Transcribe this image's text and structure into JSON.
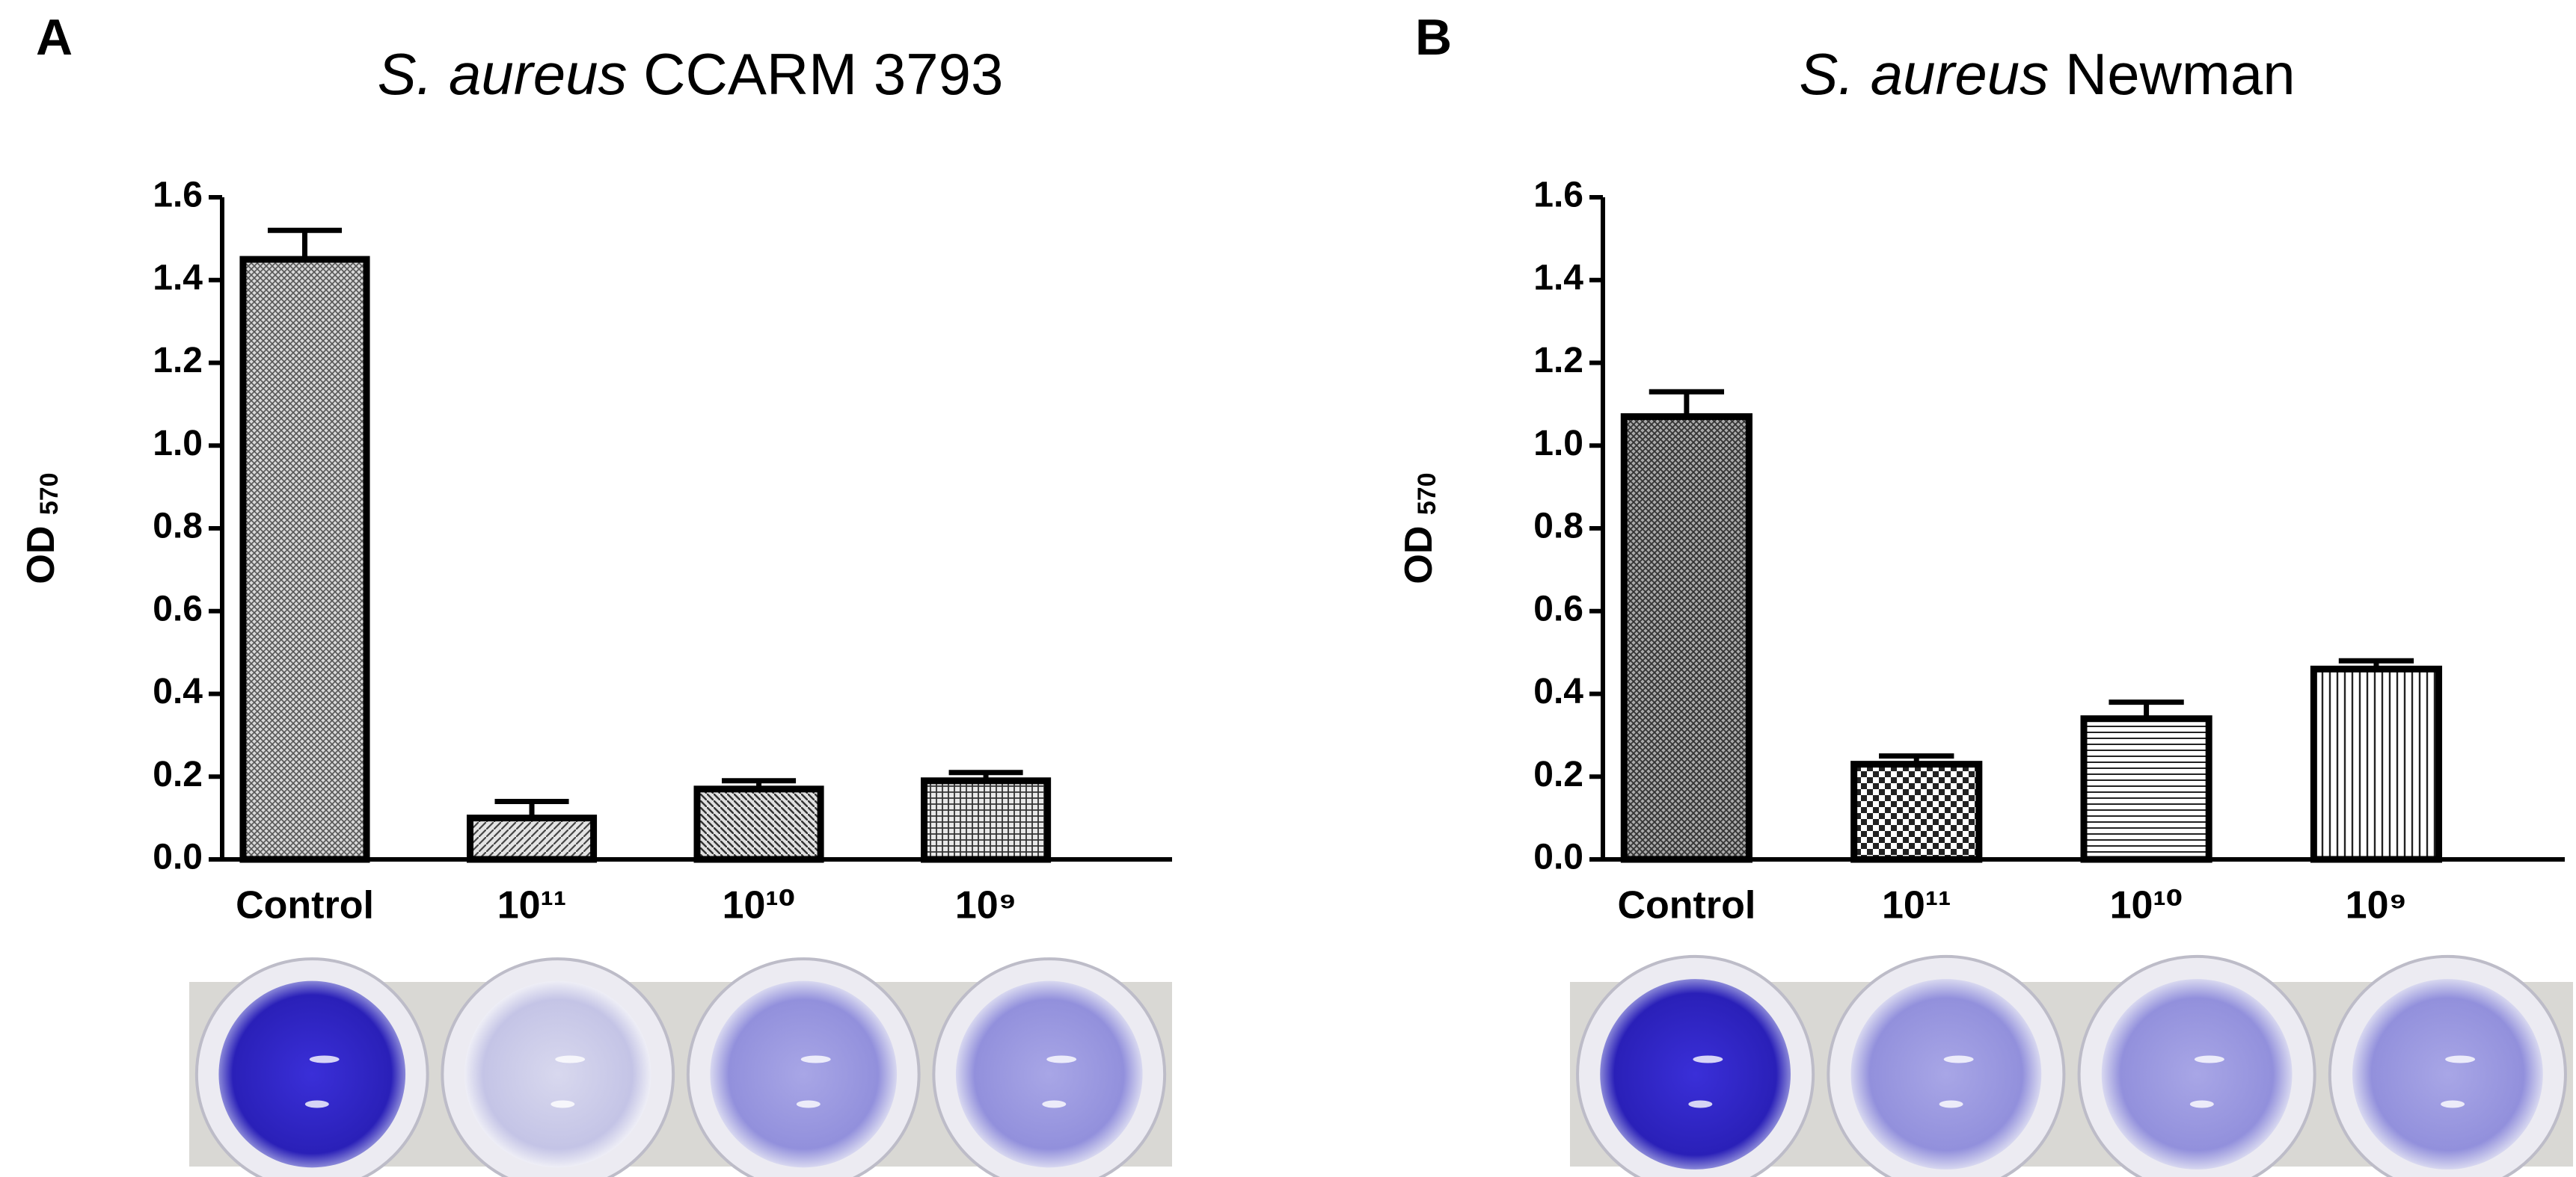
{
  "chart_data": [
    {
      "type": "bar",
      "panel": "A",
      "title": {
        "italic": "S. aureus",
        "text": "CCARM 3793"
      },
      "ylabel": {
        "text": "OD",
        "sub": "570"
      },
      "categories": [
        "Control",
        "10¹¹",
        "10¹⁰",
        "10⁹"
      ],
      "values": [
        1.45,
        0.1,
        0.17,
        0.19
      ],
      "errors": [
        0.07,
        0.04,
        0.02,
        0.02
      ],
      "ylim": [
        0,
        1.6
      ],
      "yticks": [
        {
          "value": 0,
          "label": "0.0"
        },
        0.2,
        0.4,
        0.6,
        0.8,
        {
          "value": 1,
          "label": "1.0"
        },
        1.2,
        1.4,
        1.6
      ]
    },
    {
      "type": "bar",
      "panel": "B",
      "title": {
        "italic": "S. aureus",
        "text": "Newman"
      },
      "ylabel": {
        "text": "OD",
        "sub": "570"
      },
      "categories": [
        "Control",
        "10¹¹",
        "10¹⁰",
        "10⁹"
      ],
      "values": [
        1.07,
        0.23,
        0.34,
        0.46
      ],
      "errors": [
        0.06,
        0.02,
        0.04,
        0.02
      ],
      "ylim": [
        0,
        1.6
      ],
      "yticks": [
        {
          "value": 0,
          "label": "0.0"
        },
        0.2,
        0.4,
        0.6,
        0.8,
        {
          "value": 1,
          "label": "1.0"
        },
        1.2,
        1.4,
        1.6
      ]
    }
  ]
}
